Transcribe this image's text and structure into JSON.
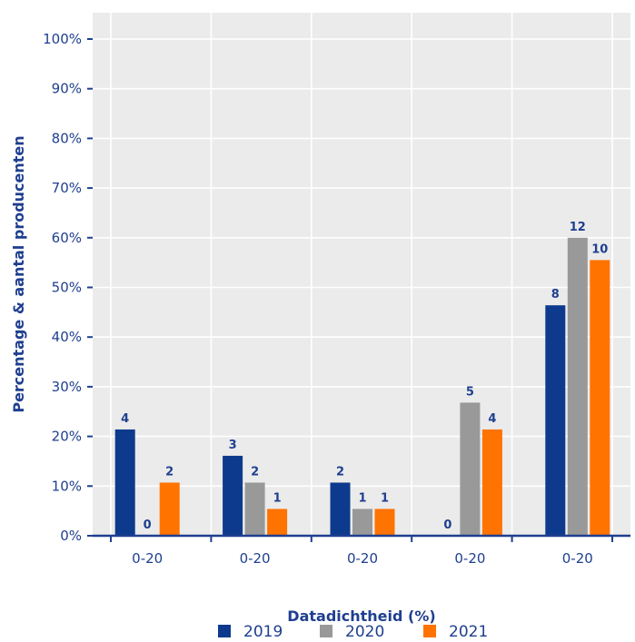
{
  "chart_data": {
    "type": "bar",
    "xlabel": "Datadichtheid (%)",
    "ylabel": "Percentage & aantal producenten",
    "ylim": [
      0,
      100
    ],
    "yticks": [
      "0%",
      "10%",
      "20%",
      "30%",
      "40%",
      "50%",
      "60%",
      "70%",
      "80%",
      "90%",
      "100%"
    ],
    "categories": [
      "0-20",
      "0-20",
      "0-20",
      "0-20",
      "0-20"
    ],
    "legend_position": "bottom",
    "grid": true,
    "series": [
      {
        "name": "2019",
        "color": "#0d3a8c",
        "values": [
          21.4,
          16.1,
          10.7,
          0,
          46.4
        ],
        "labels": [
          "4",
          "3",
          "2",
          "0",
          "8"
        ]
      },
      {
        "name": "2020",
        "color": "#999999",
        "values": [
          0,
          10.7,
          5.4,
          26.8,
          60.0
        ],
        "labels": [
          "0",
          "2",
          "1",
          "5",
          "12"
        ]
      },
      {
        "name": "2021",
        "color": "#ff7300",
        "values": [
          10.7,
          5.4,
          5.4,
          21.4,
          55.5
        ],
        "labels": [
          "2",
          "1",
          "1",
          "4",
          "10"
        ]
      }
    ]
  }
}
